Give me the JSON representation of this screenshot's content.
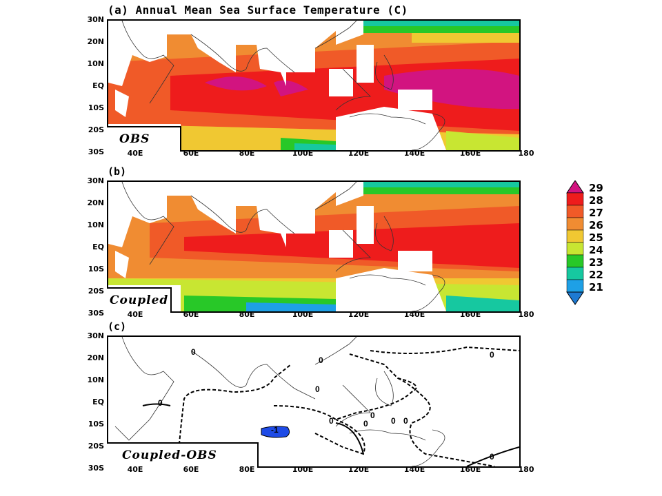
{
  "title": "(a) Annual Mean Sea Surface Temperature (C)",
  "panels": [
    {
      "letter": "(a)",
      "tag": "OBS"
    },
    {
      "letter": "(b)",
      "tag": "Coupled"
    },
    {
      "letter": "(c)",
      "tag": "Coupled-OBS"
    }
  ],
  "lat_labels": [
    "30N",
    "20N",
    "10N",
    "EQ",
    "10S",
    "20S",
    "30S"
  ],
  "lon_labels": [
    "40E",
    "60E",
    "80E",
    "100E",
    "120E",
    "140E",
    "160E",
    "180"
  ],
  "colorbar": {
    "labels": [
      "29",
      "28",
      "27",
      "26",
      "25",
      "24",
      "23",
      "22",
      "21"
    ],
    "colors": {
      "above29": "#d21480",
      "c28": "#ee1c1c",
      "c27": "#f05a28",
      "c26": "#f08c32",
      "c25": "#f0c832",
      "c24": "#c8e632",
      "c23": "#28c828",
      "c22": "#16c8a0",
      "c21": "#1ea0e6",
      "below21": "#1e7ad2"
    }
  },
  "diff_contour_labels": [
    "0",
    "0",
    "0",
    "0",
    "0",
    "0",
    "0",
    "0",
    "0",
    "0",
    "-1",
    "0"
  ]
}
